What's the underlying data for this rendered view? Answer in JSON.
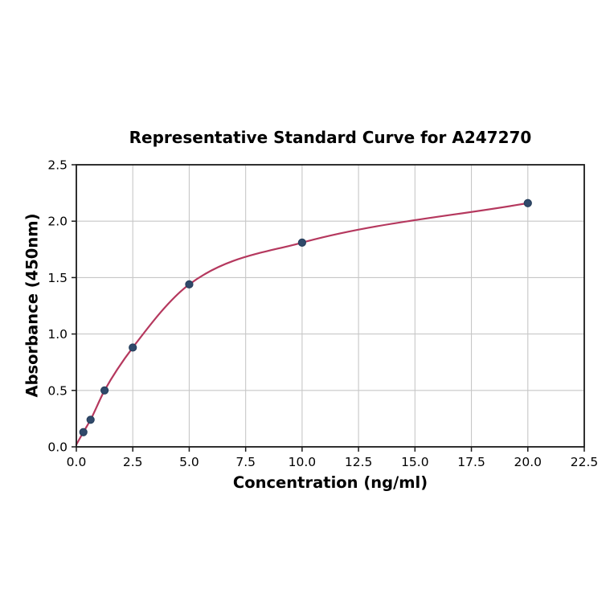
{
  "chart_data": {
    "type": "scatter",
    "title": "Representative Standard Curve for A247270",
    "xlabel": "Concentration (ng/ml)",
    "ylabel": "Absorbance (450nm)",
    "x": [
      0.31,
      0.63,
      1.25,
      2.5,
      5,
      10,
      20
    ],
    "y": [
      0.13,
      0.24,
      0.5,
      0.88,
      1.44,
      1.81,
      2.16
    ],
    "fit_curve": {
      "type": "4PL-like smooth saturation fit through points",
      "start": {
        "x": 0,
        "y": 0.02
      }
    },
    "xlim": [
      0,
      22.5
    ],
    "ylim": [
      0,
      2.5
    ],
    "x_ticks": [
      0,
      2.5,
      5,
      7.5,
      10,
      12.5,
      15,
      17.5,
      20,
      22.5
    ],
    "x_tick_labels": [
      "0.0",
      "2.5",
      "5.0",
      "7.5",
      "10.0",
      "12.5",
      "15.0",
      "17.5",
      "20.0",
      "22.5"
    ],
    "y_ticks": [
      0,
      0.5,
      1,
      1.5,
      2,
      2.5
    ],
    "y_tick_labels": [
      "0.0",
      "0.5",
      "1.0",
      "1.5",
      "2.0",
      "2.5"
    ],
    "grid": true,
    "legend": "none",
    "colors": {
      "curve": "#b5385e",
      "marker_fill": "#30496a",
      "marker_edge": "#243c59",
      "grid": "#c7c7c7",
      "spine": "#1a1a1a",
      "text": "#000000",
      "background": "#ffffff"
    }
  }
}
